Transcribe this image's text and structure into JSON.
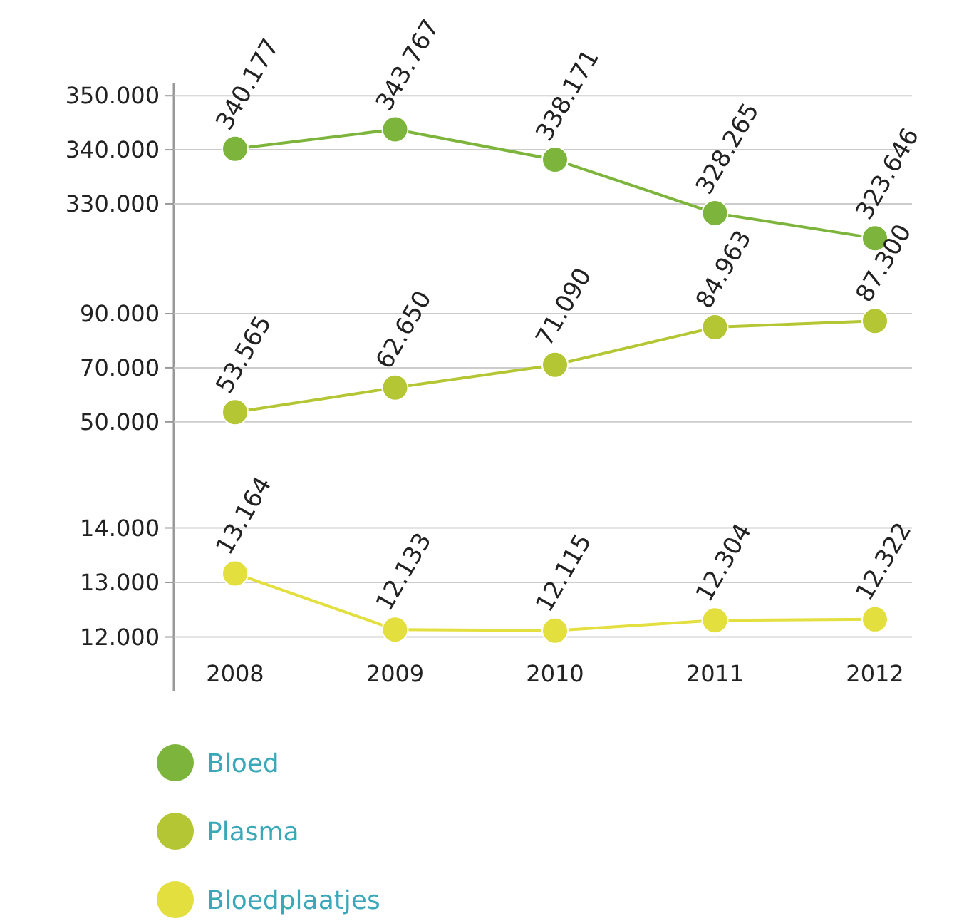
{
  "chart_data": [
    {
      "type": "line",
      "categories": [
        "2008",
        "2009",
        "2010",
        "2011",
        "2012"
      ],
      "series": [
        {
          "name": "Bloed",
          "color": "#7db53c",
          "values": [
            340177,
            343767,
            338171,
            328265,
            323646
          ],
          "value_labels": [
            "340.177",
            "343.767",
            "338.171",
            "328.265",
            "323.646"
          ]
        }
      ],
      "ylim": [
        317600,
        352400
      ],
      "yticks": [
        {
          "value": 330000,
          "label": "330.000"
        },
        {
          "value": 340000,
          "label": "340.000"
        },
        {
          "value": 350000,
          "label": "350.000"
        }
      ],
      "grid": "y",
      "marker": "circle",
      "tick_labels": "y",
      "legend": "bottom"
    },
    {
      "type": "line",
      "categories": [
        "2008",
        "2009",
        "2010",
        "2011",
        "2012"
      ],
      "series": [
        {
          "name": "Plasma",
          "color": "#b5c634",
          "values": [
            53565,
            62650,
            71090,
            84963,
            87300
          ],
          "value_labels": [
            "53.565",
            "62.650",
            "71.090",
            "84.963",
            "87.300"
          ]
        }
      ],
      "ylim": [
        31000,
        105800
      ],
      "yticks": [
        {
          "value": 50000,
          "label": "50.000"
        },
        {
          "value": 70000,
          "label": "70.000"
        },
        {
          "value": 90000,
          "label": "90.000"
        }
      ],
      "grid": "y",
      "marker": "circle",
      "tick_labels": "y",
      "legend": "bottom"
    },
    {
      "type": "line",
      "categories": [
        "2008",
        "2009",
        "2010",
        "2011",
        "2012"
      ],
      "series": [
        {
          "name": "Bloedplaatjes",
          "color": "#e3df3e",
          "values": [
            13164,
            12133,
            12115,
            12304,
            12322
          ],
          "value_labels": [
            "13.164",
            "12.133",
            "12.115",
            "12.304",
            "12.322"
          ]
        }
      ],
      "ylim": [
        11000,
        15000
      ],
      "yticks": [
        {
          "value": 12000,
          "label": "12.000"
        },
        {
          "value": 13000,
          "label": "13.000"
        },
        {
          "value": 14000,
          "label": "14.000"
        }
      ],
      "grid": "y",
      "marker": "circle",
      "legend": "bottom"
    }
  ]
}
